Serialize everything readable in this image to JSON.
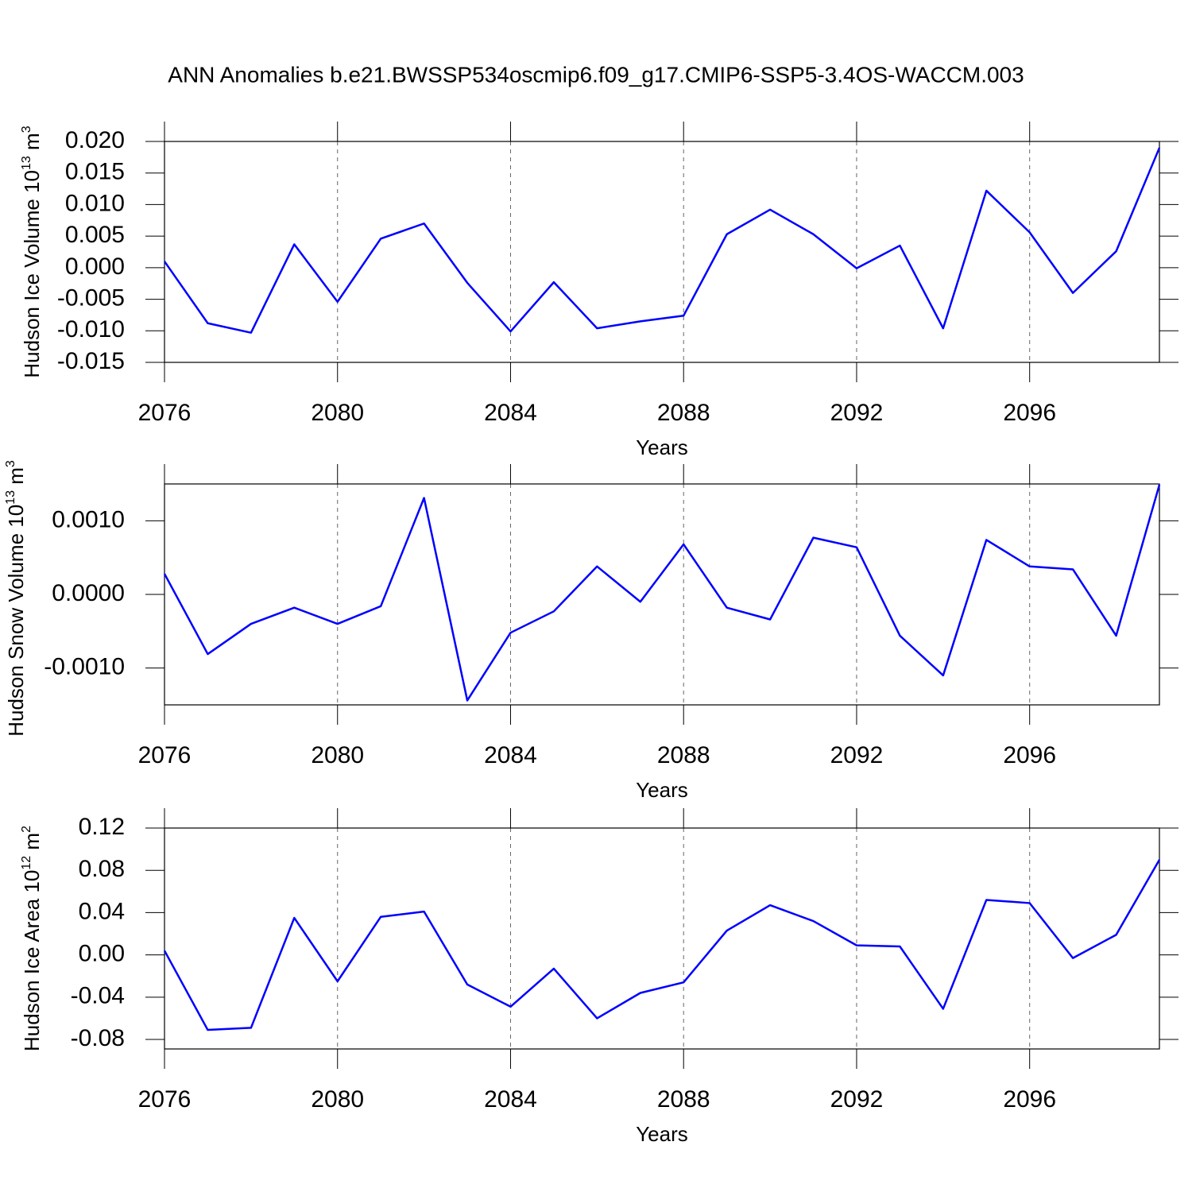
{
  "chart_data": [
    {
      "type": "line",
      "title": "ANN Anomalies b.e21.BWSSP534oscmip6.f09_g17.CMIP6-SSP5-3.4OS-WACCM.003",
      "ylabel": [
        "Hudson Ice Volume 10",
        "13",
        " m",
        "3"
      ],
      "xlabel": "Years",
      "x": [
        2076,
        2077,
        2078,
        2079,
        2080,
        2081,
        2082,
        2083,
        2084,
        2085,
        2086,
        2087,
        2088,
        2089,
        2090,
        2091,
        2092,
        2093,
        2094,
        2095,
        2096,
        2097,
        2098,
        2099
      ],
      "xlim": [
        2076,
        2099
      ],
      "xticks": [
        2076,
        2080,
        2084,
        2088,
        2092,
        2096
      ],
      "xgrid": true,
      "ylim": [
        -0.015,
        0.02
      ],
      "yticks": [
        {
          "value": 0.02,
          "label": "0.020"
        },
        0.015,
        {
          "value": 0.01,
          "label": "0.010"
        },
        0.005,
        {
          "value": 0,
          "label": "0.000"
        },
        -0.005,
        {
          "value": -0.01,
          "label": "-0.010"
        },
        -0.015
      ],
      "series": [
        {
          "color": "#0000ff",
          "values": [
            0.001,
            -0.0088,
            -0.0103,
            0.0037,
            -0.0054,
            0.0046,
            0.007,
            -0.0024,
            -0.0101,
            -0.0023,
            -0.0096,
            -0.0085,
            -0.0076,
            0.0053,
            0.0092,
            0.0053,
            -0.0001,
            0.0035,
            -0.0096,
            0.0122,
            0.0056,
            -0.004,
            0.0026,
            0.019
          ]
        }
      ]
    },
    {
      "type": "line",
      "ylabel": [
        "Hudson Snow Volume 10",
        "13",
        " m",
        "3"
      ],
      "xlabel": "Years",
      "x": [
        2076,
        2077,
        2078,
        2079,
        2080,
        2081,
        2082,
        2083,
        2084,
        2085,
        2086,
        2087,
        2088,
        2089,
        2090,
        2091,
        2092,
        2093,
        2094,
        2095,
        2096,
        2097,
        2098,
        2099
      ],
      "xlim": [
        2076,
        2099
      ],
      "xticks": [
        2076,
        2080,
        2084,
        2088,
        2092,
        2096
      ],
      "xgrid": true,
      "ylim": [
        -0.0015,
        0.0015
      ],
      "yticks": [
        {
          "value": 0.001,
          "label": "0.0010"
        },
        {
          "value": 0,
          "label": "0.0000"
        },
        {
          "value": -0.001,
          "label": "-0.0010"
        }
      ],
      "series": [
        {
          "color": "#0000ff",
          "values": [
            0.00028,
            -0.00081,
            -0.0004,
            -0.00018,
            -0.0004,
            -0.00016,
            0.00131,
            -0.00144,
            -0.00052,
            -0.00023,
            0.00038,
            -0.0001,
            0.00068,
            -0.00018,
            -0.00034,
            0.00077,
            0.00064,
            -0.00056,
            -0.0011,
            0.00074,
            0.00038,
            0.00034,
            -0.00056,
            0.00149
          ]
        }
      ]
    },
    {
      "type": "line",
      "ylabel": [
        "Hudson Ice Area 10",
        "12",
        " m",
        "2"
      ],
      "xlabel": "Years",
      "x": [
        2076,
        2077,
        2078,
        2079,
        2080,
        2081,
        2082,
        2083,
        2084,
        2085,
        2086,
        2087,
        2088,
        2089,
        2090,
        2091,
        2092,
        2093,
        2094,
        2095,
        2096,
        2097,
        2098,
        2099
      ],
      "xlim": [
        2076,
        2099
      ],
      "xticks": [
        2076,
        2080,
        2084,
        2088,
        2092,
        2096
      ],
      "xgrid": true,
      "ylim": [
        -0.089,
        0.12
      ],
      "yticks": [
        0.12,
        0.08,
        0.04,
        {
          "value": 0,
          "label": "0.00"
        },
        -0.04,
        -0.08
      ],
      "series": [
        {
          "color": "#0000ff",
          "values": [
            0.004,
            -0.071,
            -0.069,
            0.035,
            -0.025,
            0.036,
            0.041,
            -0.028,
            -0.049,
            -0.013,
            -0.06,
            -0.036,
            -0.026,
            0.023,
            0.047,
            0.032,
            0.009,
            0.008,
            -0.051,
            0.052,
            0.049,
            -0.003,
            0.019,
            0.09
          ]
        }
      ]
    }
  ]
}
